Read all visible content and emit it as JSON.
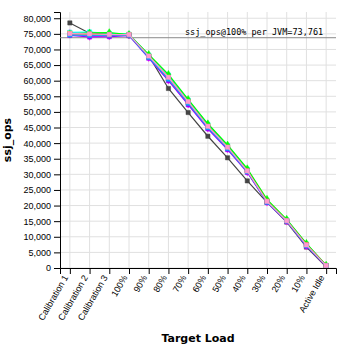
{
  "chart_data": {
    "type": "line",
    "xlabel": "Target Load",
    "ylabel": "ssj_ops",
    "categories": [
      "Calibration 1",
      "Calibration 2",
      "Calibration 3",
      "100%",
      "90%",
      "80%",
      "70%",
      "60%",
      "50%",
      "40%",
      "30%",
      "20%",
      "10%",
      "Active Idle"
    ],
    "series": [
      {
        "color": "#444444",
        "marker": "square",
        "values": [
          78500,
          75200,
          74900,
          74600,
          68000,
          57500,
          49800,
          42200,
          35300,
          27900,
          21000,
          14700,
          6700,
          400
        ]
      },
      {
        "color": "#FF0000",
        "marker": "square",
        "values": [
          75300,
          75100,
          74700,
          74800,
          67800,
          61500,
          53500,
          45500,
          38800,
          31200,
          21300,
          15200,
          7400,
          700
        ]
      },
      {
        "color": "#FF00FF",
        "marker": "diamond",
        "values": [
          75100,
          74200,
          74400,
          74600,
          67400,
          60200,
          52500,
          44800,
          38200,
          30800,
          21100,
          15000,
          7100,
          600
        ]
      },
      {
        "color": "#00FFFF",
        "marker": "square",
        "values": [
          75500,
          75600,
          75200,
          74900,
          68200,
          61800,
          53800,
          46000,
          39200,
          31600,
          21600,
          15400,
          7700,
          850
        ]
      },
      {
        "color": "#FFFF00",
        "marker": "square",
        "values": [
          75200,
          74600,
          74800,
          74700,
          67600,
          60700,
          53000,
          45200,
          38500,
          31000,
          21200,
          15100,
          7300,
          750
        ]
      },
      {
        "color": "#00FF00",
        "marker": "diamond",
        "values": [
          74900,
          75300,
          75400,
          74800,
          68400,
          62000,
          54000,
          46200,
          39400,
          31800,
          22000,
          15600,
          7900,
          900
        ]
      },
      {
        "color": "#9900FF",
        "marker": "square",
        "values": [
          74500,
          74000,
          74100,
          74400,
          67200,
          60000,
          52300,
          44600,
          37900,
          30600,
          21000,
          14900,
          7000,
          650
        ]
      },
      {
        "color": "#FF6600",
        "marker": "square",
        "values": [
          75000,
          74800,
          74700,
          74700,
          67700,
          60800,
          53100,
          45300,
          38600,
          31100,
          21400,
          15200,
          7500,
          800
        ]
      },
      {
        "color": "#00AAFF",
        "marker": "square",
        "values": [
          74700,
          74500,
          74600,
          74600,
          67500,
          60500,
          52800,
          45000,
          38300,
          30900,
          21100,
          15050,
          7200,
          720
        ]
      },
      {
        "color": "#FF99CC",
        "marker": "square",
        "values": [
          75100,
          75000,
          74800,
          74750,
          67900,
          61100,
          53300,
          45400,
          38700,
          31100,
          21350,
          15150,
          7400,
          780
        ]
      }
    ],
    "reference_line": {
      "value": 73761,
      "label": "ssj_ops@100% per JVM=73,761"
    },
    "ylim": [
      0,
      82000
    ],
    "yticks": [
      0,
      {
        "value": 5000,
        "label": "5,000"
      },
      {
        "value": 10000,
        "label": "10,000"
      },
      {
        "value": 15000,
        "label": "15,000"
      },
      {
        "value": 20000,
        "label": "20,000"
      },
      {
        "value": 25000,
        "label": "25,000"
      },
      {
        "value": 30000,
        "label": "30,000"
      },
      {
        "value": 35000,
        "label": "35,000"
      },
      {
        "value": 40000,
        "label": "40,000"
      },
      {
        "value": 45000,
        "label": "45,000"
      },
      {
        "value": 50000,
        "label": "50,000"
      },
      {
        "value": 55000,
        "label": "55,000"
      },
      {
        "value": 60000,
        "label": "60,000"
      },
      {
        "value": 65000,
        "label": "65,000"
      },
      {
        "value": 70000,
        "label": "70,000"
      },
      {
        "value": 75000,
        "label": "75,000"
      },
      {
        "value": 80000,
        "label": "80,000"
      }
    ],
    "grid": true
  }
}
